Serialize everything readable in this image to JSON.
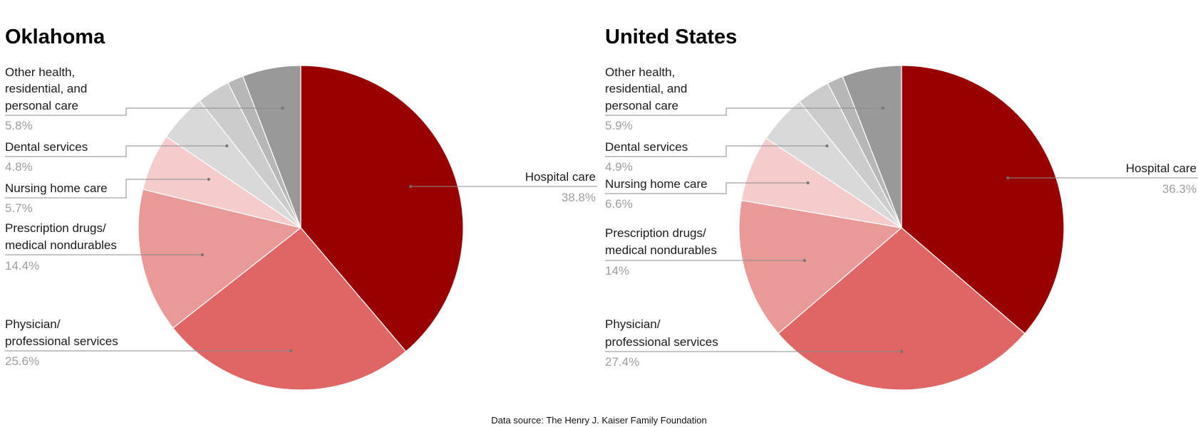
{
  "colors": {
    "hospital": "#990000",
    "physician": "#e06666",
    "prescription": "#ea9999",
    "nursing": "#f4cccc",
    "dental": "#d9d9d9",
    "other_small_1": "#cccccc",
    "other_small_2": "#b7b7b7",
    "other_health": "#999999",
    "label_text": "#1a1a1a",
    "percent_text": "#9e9e9e"
  },
  "chart_data": [
    {
      "type": "pie",
      "title": "Oklahoma",
      "unit": "%",
      "slices": [
        {
          "label": "Hospital care",
          "value": 38.8,
          "value_label": "38.8%",
          "color": "#990000",
          "labeled": true
        },
        {
          "label": "Physician/ professional services",
          "value": 25.6,
          "value_label": "25.6%",
          "color": "#e06666",
          "labeled": true
        },
        {
          "label": "Prescription drugs/ medical nondurables",
          "value": 14.4,
          "value_label": "14.4%",
          "color": "#ea9999",
          "labeled": true
        },
        {
          "label": "Nursing home care",
          "value": 5.7,
          "value_label": "5.7%",
          "color": "#f4cccc",
          "labeled": true
        },
        {
          "label": "Dental services",
          "value": 4.8,
          "value_label": "4.8%",
          "color": "#d9d9d9",
          "labeled": true
        },
        {
          "label": "",
          "value": 3.3,
          "value_label": "",
          "color": "#cccccc",
          "labeled": false
        },
        {
          "label": "",
          "value": 1.6,
          "value_label": "",
          "color": "#b7b7b7",
          "labeled": false
        },
        {
          "label": "Other health, residential, and personal care",
          "value": 5.8,
          "value_label": "5.8%",
          "color": "#999999",
          "labeled": true
        }
      ]
    },
    {
      "type": "pie",
      "title": "United States",
      "unit": "%",
      "slices": [
        {
          "label": "Hospital care",
          "value": 36.3,
          "value_label": "36.3%",
          "color": "#990000",
          "labeled": true
        },
        {
          "label": "Physician/ professional services",
          "value": 27.4,
          "value_label": "27.4%",
          "color": "#e06666",
          "labeled": true
        },
        {
          "label": "Prescription drugs/ medical nondurables",
          "value": 14,
          "value_label": "14%",
          "color": "#ea9999",
          "labeled": true
        },
        {
          "label": "Nursing home care",
          "value": 6.6,
          "value_label": "6.6%",
          "color": "#f4cccc",
          "labeled": true
        },
        {
          "label": "Dental services",
          "value": 4.9,
          "value_label": "4.9%",
          "color": "#d9d9d9",
          "labeled": true
        },
        {
          "label": "",
          "value": 3.3,
          "value_label": "",
          "color": "#cccccc",
          "labeled": false
        },
        {
          "label": "",
          "value": 1.6,
          "value_label": "",
          "color": "#b7b7b7",
          "labeled": false
        },
        {
          "label": "Other health, residential, and personal care",
          "value": 5.9,
          "value_label": "5.9%",
          "color": "#999999",
          "labeled": true
        }
      ]
    }
  ],
  "source_note": "Data source: The Henry J. Kaiser Family Foundation"
}
